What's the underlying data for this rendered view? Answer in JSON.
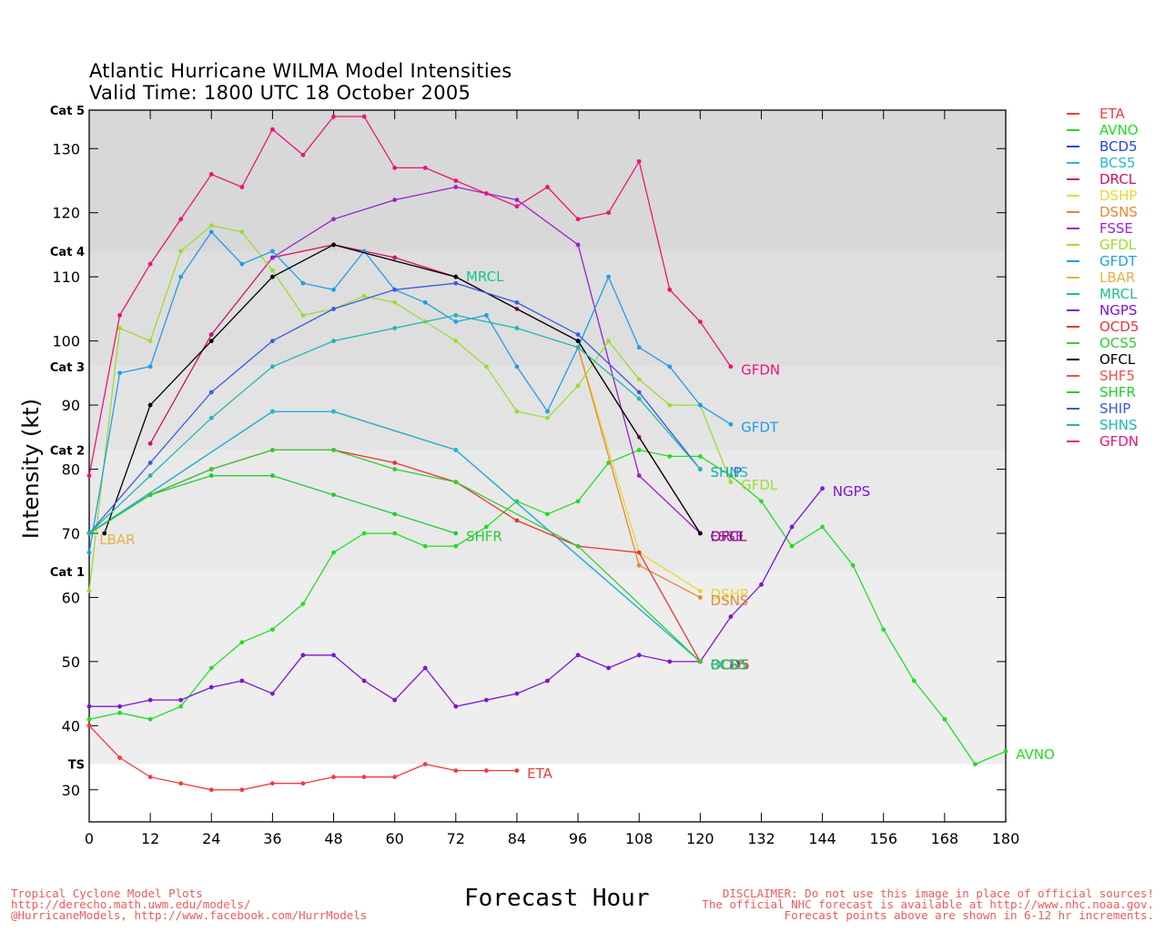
{
  "chart_data": {
    "type": "line",
    "title": "Atlantic Hurricane WILMA Model Intensities",
    "subtitle": "Valid Time: 1800 UTC 18 October 2005",
    "xlabel": "Forecast Hour",
    "ylabel": "Intensity (kt)",
    "xlim": [
      0,
      180
    ],
    "ylim": [
      25,
      136
    ],
    "xticks": [
      0,
      12,
      24,
      36,
      48,
      60,
      72,
      84,
      96,
      108,
      120,
      132,
      144,
      156,
      168,
      180
    ],
    "yticks": [
      30,
      40,
      50,
      60,
      70,
      80,
      90,
      100,
      110,
      120,
      130
    ],
    "categories": [
      {
        "label": "TS",
        "value": 34,
        "color": "#ffffff"
      },
      {
        "label": "Cat 1",
        "value": 64,
        "color": "#eeeeee"
      },
      {
        "label": "Cat 2",
        "value": 83,
        "color": "#e9e9e9"
      },
      {
        "label": "Cat 3",
        "value": 96,
        "color": "#e3e3e3"
      },
      {
        "label": "Cat 4",
        "value": 114,
        "color": "#dedede"
      },
      {
        "label": "Cat 5",
        "value": 136,
        "color": "#d8d8d8"
      }
    ],
    "series": [
      {
        "name": "ETA",
        "color": "#f03c3c",
        "label": "ETA",
        "x": [
          0,
          6,
          12,
          18,
          24,
          30,
          36,
          42,
          48,
          54,
          60,
          66,
          72,
          78,
          84
        ],
        "values": [
          40,
          35,
          32,
          31,
          30,
          30,
          31,
          31,
          32,
          32,
          32,
          34,
          33,
          33,
          33
        ]
      },
      {
        "name": "AVNO",
        "color": "#22dd22",
        "label": "AVNO",
        "x": [
          0,
          6,
          12,
          18,
          24,
          30,
          36,
          42,
          48,
          54,
          60,
          66,
          72,
          78,
          84,
          90,
          96,
          102,
          108,
          114,
          120,
          126,
          132,
          138,
          144,
          150,
          156,
          162,
          168,
          174,
          180
        ],
        "values": [
          41,
          42,
          41,
          43,
          49,
          53,
          55,
          59,
          67,
          70,
          70,
          68,
          68,
          71,
          75,
          73,
          75,
          81,
          83,
          82,
          82,
          79,
          75,
          68,
          71,
          65,
          55,
          47,
          41,
          34,
          36
        ]
      },
      {
        "name": "BCD5",
        "color": "#2244dd",
        "label": "BCD5",
        "x": [
          0,
          36,
          48,
          72,
          120
        ],
        "values": [
          70,
          89,
          89,
          83,
          50
        ]
      },
      {
        "name": "BCS5",
        "color": "#22bbcc",
        "label": "BCS5",
        "x": [
          0,
          36,
          48,
          72,
          120
        ],
        "values": [
          70,
          89,
          89,
          83,
          50
        ]
      },
      {
        "name": "DRCL",
        "color": "#d0106a",
        "label": "DRCL",
        "x": [
          12,
          24,
          36,
          48,
          60,
          72,
          84,
          96,
          108,
          120
        ],
        "values": [
          84,
          101,
          113,
          115,
          113,
          110,
          105,
          100,
          85,
          70
        ]
      },
      {
        "name": "DSHP",
        "color": "#e8d830",
        "label": "DSHP",
        "x": [
          96,
          108,
          120
        ],
        "values": [
          99,
          67,
          61
        ]
      },
      {
        "name": "DSNS",
        "color": "#e88830",
        "label": "DSNS",
        "x": [
          96,
          108,
          120
        ],
        "values": [
          99,
          65,
          60
        ]
      },
      {
        "name": "FSSE",
        "color": "#9922cc",
        "label": "FSSE",
        "x": [
          36,
          48,
          60,
          72,
          84,
          96,
          108,
          120
        ],
        "values": [
          113,
          119,
          122,
          124,
          122,
          115,
          79,
          70
        ]
      },
      {
        "name": "GFDL",
        "color": "#99dd33",
        "label": "GFDL",
        "x": [
          0,
          6,
          12,
          18,
          24,
          30,
          36,
          42,
          48,
          54,
          60,
          66,
          72,
          78,
          84,
          90,
          96,
          102,
          108,
          114,
          120,
          126
        ],
        "values": [
          61,
          102,
          100,
          114,
          118,
          117,
          111,
          104,
          105,
          107,
          106,
          103,
          100,
          96,
          89,
          88,
          93,
          100,
          94,
          90,
          90,
          78
        ]
      },
      {
        "name": "GFDT",
        "color": "#1f9ee8",
        "label": "GFDT",
        "x": [
          0,
          6,
          12,
          18,
          24,
          30,
          36,
          42,
          48,
          54,
          60,
          66,
          72,
          78,
          84,
          90,
          96,
          102,
          108,
          114,
          120,
          126
        ],
        "values": [
          67,
          95,
          96,
          110,
          117,
          112,
          114,
          109,
          108,
          114,
          108,
          106,
          103,
          104,
          96,
          89,
          99,
          110,
          99,
          96,
          90,
          87
        ]
      },
      {
        "name": "LBAR",
        "color": "#e8b040",
        "label": "LBAR",
        "x": [
          0
        ],
        "values": [
          70
        ]
      },
      {
        "name": "MRCL",
        "color": "#16c486",
        "label": "MRCL",
        "x": [
          0
        ],
        "values": [
          70
        ]
      },
      {
        "name": "NGPS",
        "color": "#7d14d4",
        "label": "NGPS",
        "x": [
          0,
          6,
          12,
          18,
          24,
          30,
          36,
          42,
          48,
          54,
          60,
          66,
          72,
          78,
          84,
          90,
          96,
          102,
          108,
          114,
          120,
          126,
          132,
          138,
          144
        ],
        "values": [
          43,
          43,
          44,
          44,
          46,
          47,
          45,
          51,
          51,
          47,
          44,
          49,
          43,
          44,
          45,
          47,
          51,
          49,
          51,
          50,
          50,
          57,
          62,
          71,
          77
        ]
      },
      {
        "name": "OCD5",
        "color": "#ee3333",
        "label": "OCD5",
        "x": [
          0,
          12,
          24,
          36,
          48,
          60,
          72,
          84,
          96,
          108,
          120
        ],
        "values": [
          70,
          76,
          80,
          83,
          83,
          81,
          78,
          72,
          68,
          67,
          50
        ]
      },
      {
        "name": "OCS5",
        "color": "#33cc33",
        "label": "OCS5",
        "x": [
          0,
          12,
          24,
          36,
          48,
          60,
          72,
          96,
          120
        ],
        "values": [
          70,
          76,
          80,
          83,
          83,
          80,
          78,
          68,
          50
        ]
      },
      {
        "name": "OFCL",
        "color": "#000000",
        "label": "OFCL",
        "x": [
          3,
          12,
          24,
          36,
          48,
          72,
          96,
          120
        ],
        "values": [
          70,
          90,
          100,
          110,
          115,
          110,
          100,
          70
        ]
      },
      {
        "name": "SHF5",
        "color": "#f05050",
        "label": "SHF5",
        "x": [
          0
        ],
        "values": [
          70
        ]
      },
      {
        "name": "SHFR",
        "color": "#22cc33",
        "label": "SHFR",
        "x": [
          0,
          12,
          24,
          36,
          48,
          60,
          72
        ],
        "values": [
          70,
          76,
          79,
          79,
          76,
          73,
          70
        ]
      },
      {
        "name": "SHIP",
        "color": "#3a5be0",
        "label": "SHIP",
        "x": [
          0,
          12,
          24,
          36,
          48,
          60,
          72,
          84,
          96,
          108,
          120
        ],
        "values": [
          70,
          81,
          92,
          100,
          105,
          108,
          109,
          106,
          101,
          92,
          80
        ]
      },
      {
        "name": "SHNS",
        "color": "#20b8b0",
        "label": "SHNS",
        "x": [
          0,
          12,
          24,
          36,
          48,
          60,
          72,
          84,
          96,
          108,
          120
        ],
        "values": [
          70,
          79,
          88,
          96,
          100,
          102,
          104,
          102,
          99,
          91,
          80
        ]
      },
      {
        "name": "GFDN",
        "color": "#ec1478",
        "label": "GFDN",
        "x": [
          0,
          6,
          12,
          18,
          24,
          30,
          36,
          42,
          48,
          54,
          60,
          66,
          72,
          78,
          84,
          90,
          96,
          102,
          108,
          114,
          120,
          126
        ],
        "values": [
          79,
          104,
          112,
          119,
          126,
          124,
          133,
          129,
          135,
          135,
          127,
          127,
          125,
          123,
          121,
          124,
          119,
          120,
          128,
          108,
          103,
          96
        ]
      }
    ],
    "end_labels": [
      {
        "text": "MRCL",
        "x": 74,
        "y": 110,
        "series": "MRCL"
      },
      {
        "text": "LBAR",
        "x": 2,
        "y": 69,
        "series": "LBAR"
      },
      {
        "text": "SHFR",
        "x": 74,
        "y": 69.5,
        "series": "SHFR"
      },
      {
        "text": "ETA",
        "x": 86,
        "y": 32.5,
        "series": "ETA"
      },
      {
        "text": "AVNO",
        "x": 182,
        "y": 35.5,
        "series": "AVNO"
      },
      {
        "text": "NGPS",
        "x": 146,
        "y": 76.5,
        "series": "NGPS"
      },
      {
        "text": "GFDN",
        "x": 128,
        "y": 95.5,
        "series": "GFDN"
      },
      {
        "text": "GFDT",
        "x": 128,
        "y": 86.5,
        "series": "GFDT"
      },
      {
        "text": "GFDL",
        "x": 128,
        "y": 77.5,
        "series": "GFDL"
      },
      {
        "text": "SHIP",
        "x": 122,
        "y": 79.5,
        "series": "SHIP"
      },
      {
        "text": "SHNS",
        "x": 122,
        "y": 79.5,
        "series": "SHNS"
      },
      {
        "text": "OFCL",
        "x": 122,
        "y": 69.5,
        "series": "OFCL"
      },
      {
        "text": "DRCL",
        "x": 122,
        "y": 69.5,
        "series": "DRCL"
      },
      {
        "text": "FSSE",
        "x": 122,
        "y": 69.5,
        "series": "FSSE"
      },
      {
        "text": "DSHP",
        "x": 122,
        "y": 60.5,
        "series": "DSHP"
      },
      {
        "text": "DSNS",
        "x": 122,
        "y": 59.5,
        "series": "DSNS"
      },
      {
        "text": "BCD5",
        "x": 122,
        "y": 49.5,
        "series": "BCD5"
      },
      {
        "text": "BCS5",
        "x": 122,
        "y": 49.5,
        "series": "BCS5"
      },
      {
        "text": "OCD5",
        "x": 122,
        "y": 49.5,
        "series": "OCD5"
      },
      {
        "text": "OCS5",
        "x": 122,
        "y": 49.5,
        "series": "OCS5"
      }
    ]
  },
  "footer": {
    "left_1": "Tropical Cyclone Model Plots",
    "left_2": "http://derecho.math.uwm.edu/models/",
    "left_3": "@HurricaneModels, http://www.facebook.com/HurrModels",
    "right_1": "DISCLAIMER: Do not use this image in place of official sources!",
    "right_2": "The official NHC forecast is available at http://www.nhc.noaa.gov.",
    "right_3": "Forecast points above are shown in 6-12 hr increments."
  }
}
